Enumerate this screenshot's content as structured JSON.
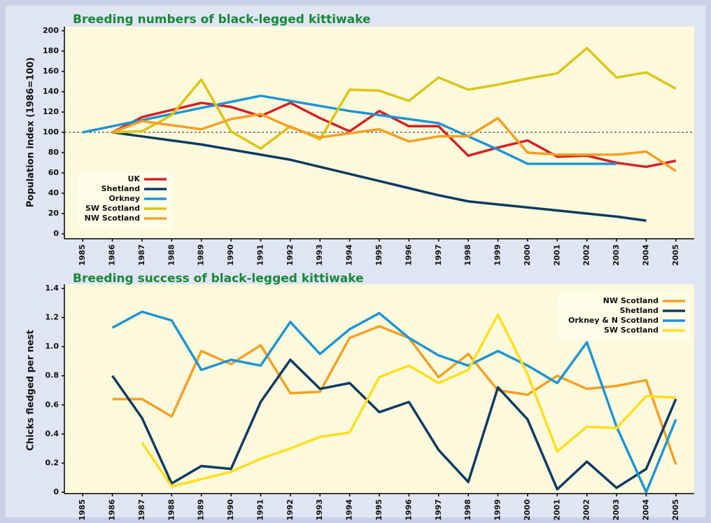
{
  "chart_data": [
    {
      "type": "line",
      "title": "Breeding numbers of black-legged kittiwake",
      "y_label": "Population index (1986=100)",
      "categories": [
        "1985",
        "1986",
        "1987",
        "1988",
        "1989",
        "1990",
        "1991",
        "1992",
        "1993",
        "1994",
        "1995",
        "1996",
        "1997",
        "1998",
        "1999",
        "2000",
        "2001",
        "2002",
        "2003",
        "2004",
        "2005"
      ],
      "series": [
        {
          "name": "UK",
          "color": "#d42027",
          "values": [
            null,
            100,
            115,
            122,
            129,
            125,
            116,
            129,
            114,
            101,
            121,
            106,
            106,
            77,
            85,
            92,
            76,
            77,
            70,
            66,
            72
          ]
        },
        {
          "name": "Shetland",
          "color": "#0e3a64",
          "values": [
            null,
            100,
            96,
            92,
            88,
            83,
            78,
            73,
            66,
            59,
            52,
            45,
            38,
            32,
            29,
            26,
            23,
            20,
            17,
            13,
            null
          ]
        },
        {
          "name": "Orkney",
          "color": "#1c95d4",
          "values": [
            100,
            106,
            112,
            118,
            124,
            130,
            136,
            131,
            126,
            121,
            117,
            113,
            109,
            96,
            83,
            69,
            69,
            69,
            69,
            null,
            null
          ]
        },
        {
          "name": "SW Scotland",
          "color": "#dcc516",
          "values": [
            null,
            100,
            101,
            117,
            152,
            101,
            84,
            106,
            93,
            142,
            141,
            131,
            154,
            142,
            147,
            153,
            158,
            183,
            154,
            159,
            143
          ]
        },
        {
          "name": "NW Scotland",
          "color": "#f4a024",
          "values": [
            null,
            100,
            111,
            107,
            103,
            113,
            118,
            105,
            95,
            99,
            103,
            91,
            96,
            96,
            114,
            80,
            78,
            78,
            78,
            81,
            62
          ]
        }
      ],
      "reference_line": 100,
      "ylim": [
        0,
        200
      ],
      "yticks": [
        0,
        20,
        40,
        60,
        80,
        100,
        120,
        140,
        160,
        180,
        200
      ],
      "legend": "lower left"
    },
    {
      "type": "line",
      "title": "Breeding success of black-legged kittiwake",
      "y_label": "Chicks fledged per nest",
      "categories": [
        "1985",
        "1986",
        "1987",
        "1988",
        "1989",
        "1990",
        "1991",
        "1992",
        "1993",
        "1994",
        "1995",
        "1996",
        "1997",
        "1998",
        "1999",
        "2000",
        "2001",
        "2002",
        "2003",
        "2004",
        "2005"
      ],
      "series": [
        {
          "name": "NW Scotland",
          "color": "#f4a024",
          "values": [
            null,
            0.64,
            0.64,
            0.52,
            0.97,
            0.88,
            1.01,
            0.68,
            0.69,
            1.06,
            1.14,
            1.06,
            0.79,
            0.95,
            0.7,
            0.67,
            0.8,
            0.71,
            0.73,
            0.77,
            0.19
          ]
        },
        {
          "name": "Shetland",
          "color": "#0e3a64",
          "values": [
            null,
            0.8,
            0.51,
            0.06,
            0.18,
            0.16,
            0.62,
            0.91,
            0.71,
            0.75,
            0.55,
            0.62,
            0.29,
            0.07,
            0.72,
            0.5,
            0.02,
            0.21,
            0.03,
            0.16,
            0.64
          ]
        },
        {
          "name": "Orkney & N Scotland",
          "color": "#1c95d4",
          "values": [
            null,
            1.13,
            1.24,
            1.18,
            0.84,
            0.91,
            0.87,
            1.17,
            0.95,
            1.12,
            1.23,
            1.06,
            0.94,
            0.87,
            0.97,
            0.87,
            0.75,
            1.03,
            0.45,
            0.0,
            0.5
          ]
        },
        {
          "name": "SW Scotland",
          "color": "#ffdf1a",
          "values": [
            null,
            null,
            0.34,
            0.04,
            0.09,
            0.14,
            0.23,
            0.3,
            0.38,
            0.41,
            0.79,
            0.87,
            0.75,
            0.84,
            1.22,
            0.81,
            0.28,
            0.45,
            0.44,
            0.66,
            0.65
          ]
        }
      ],
      "ylim": [
        0,
        1.4
      ],
      "yticks": [
        0,
        0.2,
        0.4,
        0.6,
        0.8,
        {
          "value": 1,
          "label": "1.0"
        },
        1.2,
        1.4
      ],
      "legend": "upper right"
    }
  ]
}
